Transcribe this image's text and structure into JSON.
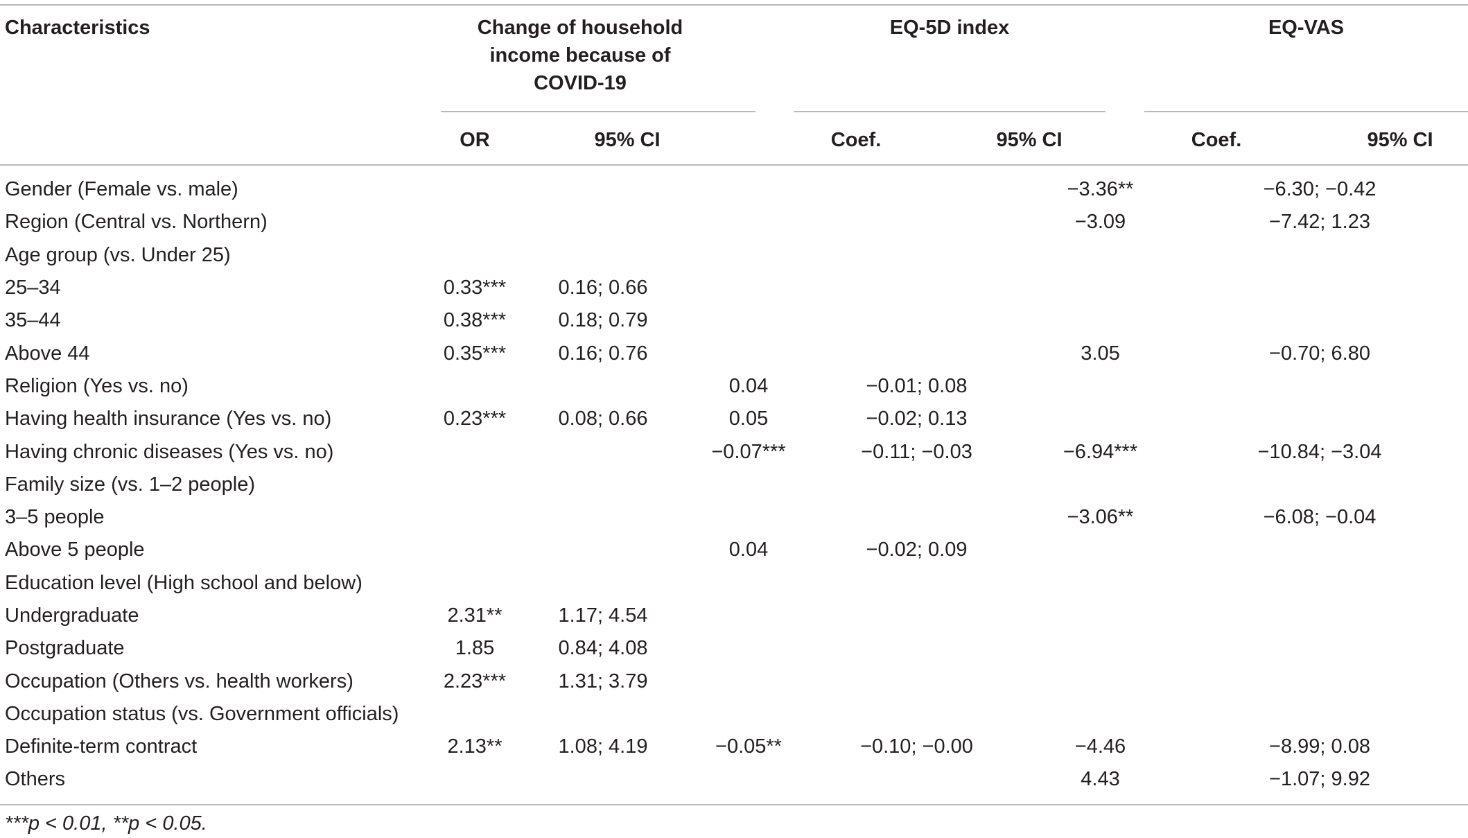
{
  "table": {
    "headers": {
      "characteristics": "Characteristics",
      "group_income": "Change of household income because of COVID-19",
      "group_income_lines": [
        "Change of household",
        "income because of",
        "COVID-19"
      ],
      "group_eq5d": "EQ-5D index",
      "group_eqvas": "EQ-VAS",
      "sub": [
        "OR",
        "95% CI",
        "Coef.",
        "95% CI",
        "Coef.",
        "95% CI"
      ]
    },
    "rows": [
      {
        "label": "Gender (Female vs. male)",
        "or": "",
        "or_ci": "",
        "eq5d": "",
        "eq5d_ci": "",
        "vas": "−3.36**",
        "vas_ci": "−6.30; −0.42"
      },
      {
        "label": "Region (Central vs. Northern)",
        "or": "",
        "or_ci": "",
        "eq5d": "",
        "eq5d_ci": "",
        "vas": "−3.09",
        "vas_ci": "−7.42; 1.23"
      },
      {
        "label": "Age group (vs. Under 25)",
        "or": "",
        "or_ci": "",
        "eq5d": "",
        "eq5d_ci": "",
        "vas": "",
        "vas_ci": ""
      },
      {
        "label": "25–34",
        "or": "0.33***",
        "or_ci": "0.16; 0.66",
        "eq5d": "",
        "eq5d_ci": "",
        "vas": "",
        "vas_ci": ""
      },
      {
        "label": "35–44",
        "or": "0.38***",
        "or_ci": "0.18; 0.79",
        "eq5d": "",
        "eq5d_ci": "",
        "vas": "",
        "vas_ci": ""
      },
      {
        "label": "Above 44",
        "or": "0.35***",
        "or_ci": "0.16; 0.76",
        "eq5d": "",
        "eq5d_ci": "",
        "vas": "3.05",
        "vas_ci": "−0.70; 6.80"
      },
      {
        "label": "Religion (Yes vs. no)",
        "or": "",
        "or_ci": "",
        "eq5d": "0.04",
        "eq5d_ci": "−0.01; 0.08",
        "vas": "",
        "vas_ci": ""
      },
      {
        "label": "Having health insurance (Yes vs. no)",
        "or": "0.23***",
        "or_ci": "0.08; 0.66",
        "eq5d": "0.05",
        "eq5d_ci": "−0.02; 0.13",
        "vas": "",
        "vas_ci": ""
      },
      {
        "label": "Having chronic diseases (Yes vs. no)",
        "or": "",
        "or_ci": "",
        "eq5d": "−0.07***",
        "eq5d_ci": "−0.11; −0.03",
        "vas": "−6.94***",
        "vas_ci": "−10.84; −3.04"
      },
      {
        "label": "Family size (vs. 1–2 people)",
        "or": "",
        "or_ci": "",
        "eq5d": "",
        "eq5d_ci": "",
        "vas": "",
        "vas_ci": ""
      },
      {
        "label": "3–5 people",
        "or": "",
        "or_ci": "",
        "eq5d": "",
        "eq5d_ci": "",
        "vas": "−3.06**",
        "vas_ci": "−6.08; −0.04"
      },
      {
        "label": "Above 5 people",
        "or": "",
        "or_ci": "",
        "eq5d": "0.04",
        "eq5d_ci": "−0.02; 0.09",
        "vas": "",
        "vas_ci": ""
      },
      {
        "label": "Education level (High school and below)",
        "or": "",
        "or_ci": "",
        "eq5d": "",
        "eq5d_ci": "",
        "vas": "",
        "vas_ci": ""
      },
      {
        "label": "Undergraduate",
        "or": "2.31**",
        "or_ci": "1.17; 4.54",
        "eq5d": "",
        "eq5d_ci": "",
        "vas": "",
        "vas_ci": ""
      },
      {
        "label": "Postgraduate",
        "or": "1.85",
        "or_ci": "0.84; 4.08",
        "eq5d": "",
        "eq5d_ci": "",
        "vas": "",
        "vas_ci": ""
      },
      {
        "label": "Occupation (Others vs. health workers)",
        "or": "2.23***",
        "or_ci": "1.31; 3.79",
        "eq5d": "",
        "eq5d_ci": "",
        "vas": "",
        "vas_ci": ""
      },
      {
        "label": "Occupation status (vs. Government officials)",
        "or": "",
        "or_ci": "",
        "eq5d": "",
        "eq5d_ci": "",
        "vas": "",
        "vas_ci": ""
      },
      {
        "label": "Definite-term contract",
        "or": "2.13**",
        "or_ci": "1.08; 4.19",
        "eq5d": "−0.05**",
        "eq5d_ci": "−0.10; −0.00",
        "vas": "−4.46",
        "vas_ci": "−8.99; 0.08"
      },
      {
        "label": "Others",
        "or": "",
        "or_ci": "",
        "eq5d": "",
        "eq5d_ci": "",
        "vas": "4.43",
        "vas_ci": "−1.07; 9.92"
      }
    ],
    "footnote": "***p < 0.01, **p < 0.05."
  }
}
